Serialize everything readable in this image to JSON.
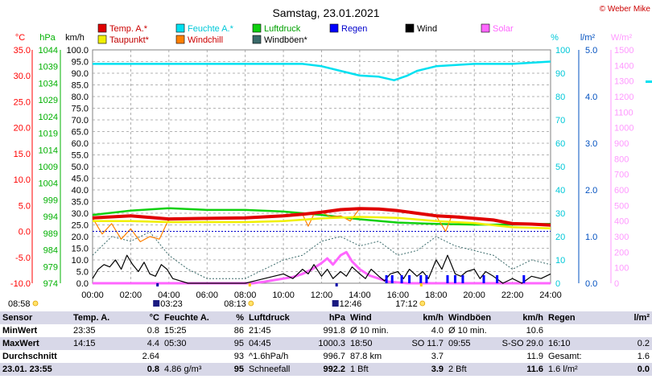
{
  "colors": {
    "temp": "#e00000",
    "humidity": "#00e0f0",
    "pressure": "#10d010",
    "rain": "#0000ff",
    "wind": "#000000",
    "solar": "#ff66ff",
    "dewpoint": "#f0f000",
    "windchill": "#ff8000",
    "gust": "#3a6a6a",
    "axis_temp": "#ff0000",
    "axis_hpa": "#00b000",
    "axis_hum": "#00c8d8",
    "axis_rain": "#0050c0",
    "axis_solar": "#ff99ff"
  },
  "chart_data": {
    "type": "line",
    "title": "Samstag, 23.01.2021",
    "credit": "© Weber Mike",
    "legend": [
      {
        "label": "Temp. A.*",
        "key": "temp"
      },
      {
        "label": "Feuchte A.*",
        "key": "humidity"
      },
      {
        "label": "Luftdruck",
        "key": "pressure"
      },
      {
        "label": "Regen",
        "key": "rain"
      },
      {
        "label": "Wind",
        "key": "wind"
      },
      {
        "label": "Solar",
        "key": "solar"
      },
      {
        "label": "Taupunkt*",
        "key": "dewpoint"
      },
      {
        "label": "Windchill",
        "key": "windchill"
      },
      {
        "label": "Windböen*",
        "key": "gust"
      }
    ],
    "axes": {
      "temp": {
        "unit": "°C",
        "ticks": [
          "35.0",
          "30.0",
          "25.0",
          "20.0",
          "15.0",
          "10.0",
          "5.0",
          "0.0",
          "-5.0",
          "-10.0"
        ]
      },
      "hpa": {
        "unit": "hPa",
        "ticks": [
          "1044",
          "1039",
          "1034",
          "1029",
          "1024",
          "1019",
          "1014",
          "1009",
          "1004",
          "999",
          "994",
          "989",
          "984",
          "979",
          "974"
        ]
      },
      "kmh": {
        "unit": "km/h",
        "ticks": [
          "100.0",
          "95.0",
          "90.0",
          "85.0",
          "80.0",
          "75.0",
          "70.0",
          "65.0",
          "60.0",
          "55.0",
          "50.0",
          "45.0",
          "40.0",
          "35.0",
          "30.0",
          "25.0",
          "20.0",
          "15.0",
          "10.0",
          "5.0",
          "0.0"
        ]
      },
      "hum": {
        "unit": "%",
        "ticks": [
          "100",
          "90",
          "80",
          "70",
          "60",
          "50",
          "40",
          "30",
          "20",
          "10",
          "0"
        ]
      },
      "rain": {
        "unit": "l/m²",
        "ticks": [
          "5.0",
          "4.0",
          "3.0",
          "2.0",
          "1.0",
          "0.0"
        ]
      },
      "solar": {
        "unit": "W/m²",
        "ticks": [
          "1500",
          "1400",
          "1300",
          "1200",
          "1100",
          "1000",
          "900",
          "800",
          "700",
          "600",
          "500",
          "400",
          "300",
          "200",
          "100",
          "0"
        ]
      },
      "time": [
        "00:00",
        "02:00",
        "04:00",
        "06:00",
        "08:00",
        "10:00",
        "12:00",
        "14:00",
        "16:00",
        "18:00",
        "20:00",
        "22:00",
        "24:00"
      ]
    },
    "series": [
      {
        "key": "temp",
        "x": [
          0,
          2,
          4,
          6,
          8,
          10,
          11,
          12,
          13,
          14,
          15,
          16,
          17,
          18,
          19,
          20,
          21,
          22,
          23,
          24
        ],
        "y": [
          2.6,
          3.0,
          2.4,
          2.5,
          2.6,
          3.0,
          3.3,
          3.7,
          4.2,
          4.4,
          4.3,
          4.0,
          3.5,
          3.0,
          2.8,
          2.5,
          2.2,
          1.5,
          1.4,
          1.2
        ]
      },
      {
        "key": "dewpoint",
        "x": [
          0,
          2,
          4,
          6,
          8,
          10,
          12,
          14,
          16,
          18,
          20,
          22,
          24
        ],
        "y": [
          2.0,
          2.0,
          1.8,
          1.8,
          1.8,
          2.0,
          2.5,
          2.8,
          2.6,
          2.0,
          1.6,
          0.8,
          0.6
        ]
      },
      {
        "key": "windchill",
        "x": [
          0,
          0.5,
          1,
          1.5,
          2,
          2.5,
          3,
          3.5,
          4,
          6,
          8,
          10,
          11,
          11.3,
          11.6,
          12,
          12.5,
          13,
          13.5,
          14,
          16,
          18,
          18.5,
          18.8,
          19.2,
          20,
          22,
          24
        ],
        "y": [
          2.6,
          -0.5,
          1.5,
          -1.5,
          0.5,
          -2.0,
          -1.0,
          -1.5,
          2.4,
          2.5,
          2.6,
          3.0,
          3.3,
          1.0,
          3.3,
          3.7,
          2.8,
          3.0,
          2.0,
          4.4,
          4.0,
          3.0,
          0.0,
          2.8,
          3.0,
          2.5,
          1.5,
          1.2
        ]
      },
      {
        "key": "humidity",
        "x": [
          0,
          8,
          11,
          12,
          13,
          14,
          15,
          15.8,
          16.5,
          17,
          18,
          20,
          22,
          24
        ],
        "y": [
          94,
          94,
          94,
          93,
          91,
          89,
          88.5,
          87,
          89,
          91,
          93,
          94,
          94,
          95
        ]
      },
      {
        "key": "pressure",
        "x": [
          0,
          2,
          4,
          6,
          8,
          10,
          12,
          14,
          16,
          18,
          20,
          22,
          24
        ],
        "y": [
          994.5,
          995.8,
          996.5,
          996.0,
          996.0,
          995.5,
          994.5,
          993.2,
          992.2,
          991.8,
          991.6,
          991.6,
          991.8
        ]
      },
      {
        "key": "wind",
        "x": [
          0,
          0.3,
          0.6,
          0.9,
          1.2,
          1.5,
          1.8,
          2.1,
          2.4,
          2.7,
          3.0,
          3.3,
          3.6,
          3.9,
          4.2,
          4.6,
          5,
          6,
          7,
          8,
          8.5,
          9,
          9.5,
          10,
          10.5,
          11,
          11.3,
          11.6,
          12,
          12.3,
          12.6,
          13,
          13.3,
          13.6,
          14,
          14.3,
          14.6,
          15,
          15.3,
          15.6,
          16,
          16.3,
          16.6,
          17,
          17.3,
          17.6,
          18,
          18.3,
          18.6,
          19,
          19.3,
          19.6,
          20,
          20.3,
          20.6,
          21,
          21.5,
          22,
          22.5,
          23,
          23.5,
          24
        ],
        "y": [
          2,
          6,
          8,
          7,
          10,
          6,
          12,
          8,
          5,
          9,
          4,
          3,
          8,
          6,
          2,
          1,
          0,
          0,
          0,
          0,
          1,
          2,
          3,
          4,
          2,
          6,
          4,
          8,
          3,
          6,
          2,
          5,
          3,
          7,
          4,
          2,
          6,
          3,
          1,
          4,
          5,
          2,
          6,
          3,
          5,
          2,
          10,
          6,
          12,
          4,
          3,
          5,
          6,
          2,
          5,
          3,
          0,
          2,
          0,
          3,
          2,
          4
        ]
      },
      {
        "key": "gust",
        "x": [
          0,
          1,
          2,
          3,
          4,
          5,
          6,
          7,
          8,
          9,
          10,
          11,
          12,
          13,
          14,
          15,
          16,
          17,
          18,
          19,
          20,
          21,
          22,
          23,
          24
        ],
        "y": [
          12,
          20,
          18,
          22,
          12,
          6,
          2,
          2,
          2,
          6,
          10,
          12,
          18,
          20,
          16,
          18,
          12,
          14,
          20,
          16,
          14,
          12,
          6,
          10,
          8
        ]
      },
      {
        "key": "solar",
        "x": [
          0,
          8.4,
          9,
          10,
          10.5,
          11,
          11.5,
          12,
          12.3,
          12.6,
          13,
          13.3,
          13.6,
          14,
          14.5,
          15,
          15.5,
          16,
          16.5,
          24
        ],
        "y": [
          0,
          0,
          10,
          30,
          40,
          60,
          90,
          130,
          160,
          120,
          180,
          200,
          140,
          90,
          50,
          30,
          10,
          5,
          0,
          0
        ]
      },
      {
        "key": "rain",
        "x": [
          0,
          24
        ],
        "y": [
          0,
          0
        ]
      }
    ],
    "rain_ticks_x": [
      15.4,
      15.7,
      16.2,
      16.6,
      17.2,
      17.5,
      18.6,
      19.0,
      19.4,
      20.5,
      21.2,
      22.6
    ],
    "sun_events": [
      {
        "time": "03:23",
        "kind": "moon"
      },
      {
        "time": "08:13",
        "kind": "sun"
      },
      {
        "time": "12:46",
        "kind": "moon"
      },
      {
        "time": "17:12",
        "kind": "sun"
      }
    ],
    "current_time": "08:58"
  },
  "stats": {
    "headers": [
      "Sensor",
      "Temp. A.",
      "°C",
      "Feuchte A.",
      "%",
      "Luftdruck",
      "hPa",
      "Wind",
      "km/h",
      "Windböen",
      "km/h",
      "Regen",
      "l/m²"
    ],
    "rows": [
      [
        "MinWert",
        "23:35",
        "0.8",
        "15:25",
        "86",
        "21:45",
        "991.8",
        "Ø 10 min.",
        "4.0",
        "Ø 10 min.",
        "10.6",
        "",
        ""
      ],
      [
        "MaxWert",
        "14:15",
        "4.4",
        "05:30",
        "95",
        "04:45",
        "1000.3",
        "18:50",
        "SO 11.7",
        "09:55",
        "S-SO 29.0",
        "16:10",
        "0.2"
      ],
      [
        "Durchschnitt",
        "",
        "2.64",
        "",
        "93",
        "^1.6hPa/h",
        "996.7",
        "87.8 km",
        "3.7",
        "",
        "11.9",
        "Gesamt:",
        "1.6"
      ],
      [
        "23.01.  23:55",
        "",
        "0.8",
        "4.86 g/m³",
        "95",
        "Schneefall",
        "992.2",
        "1 Bft",
        "3.9",
        "2 Bft",
        "11.6",
        "1.6 l/m²",
        "0.0"
      ]
    ]
  }
}
